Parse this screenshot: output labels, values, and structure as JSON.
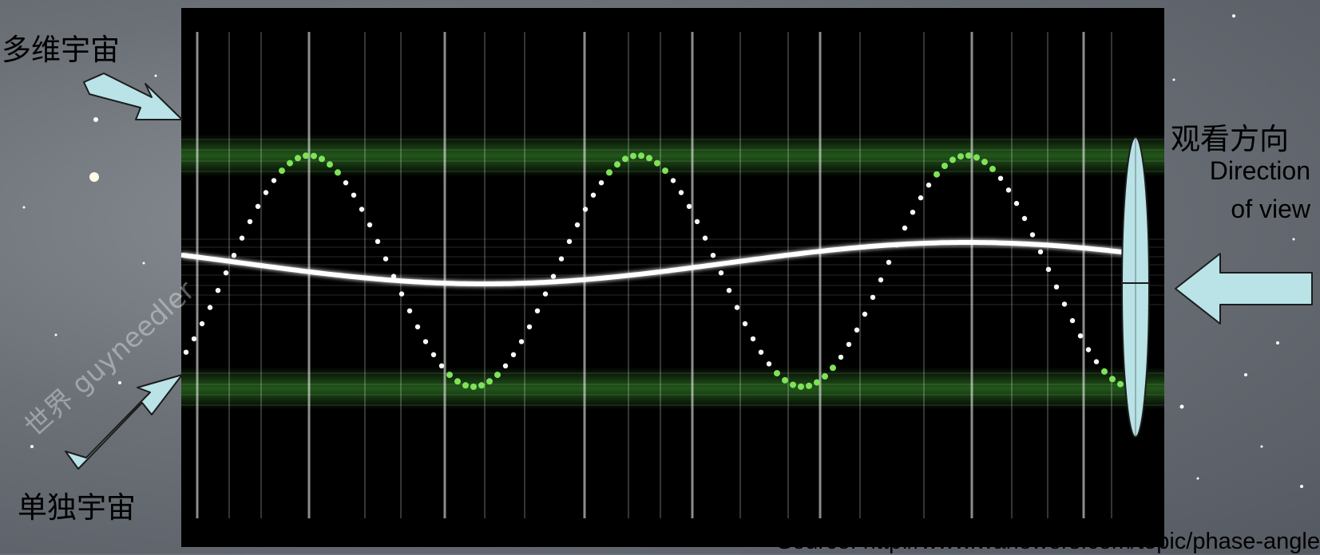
{
  "labels": {
    "multiverse": "多维宇宙",
    "single_universe": "单独宇宙",
    "view_cn": "观看方向",
    "view_en_line1": "Direction",
    "view_en_line2": "of view"
  },
  "source": "Source: http://www.wanowers.com/topic/phase-angle",
  "watermark": "世界 guyneedler",
  "colors": {
    "panel": "#000000",
    "wave_green": "#7fe35a",
    "wave_white": "#ffffff",
    "arrow_fill": "#b9e3e6",
    "arrow_stroke": "#1c1c1c"
  },
  "icons": {
    "multiverse_arrow": "arrow-icon",
    "single_arrow": "arrow-icon",
    "view_arrow": "left-arrow-icon",
    "lens": "lens-icon"
  }
}
